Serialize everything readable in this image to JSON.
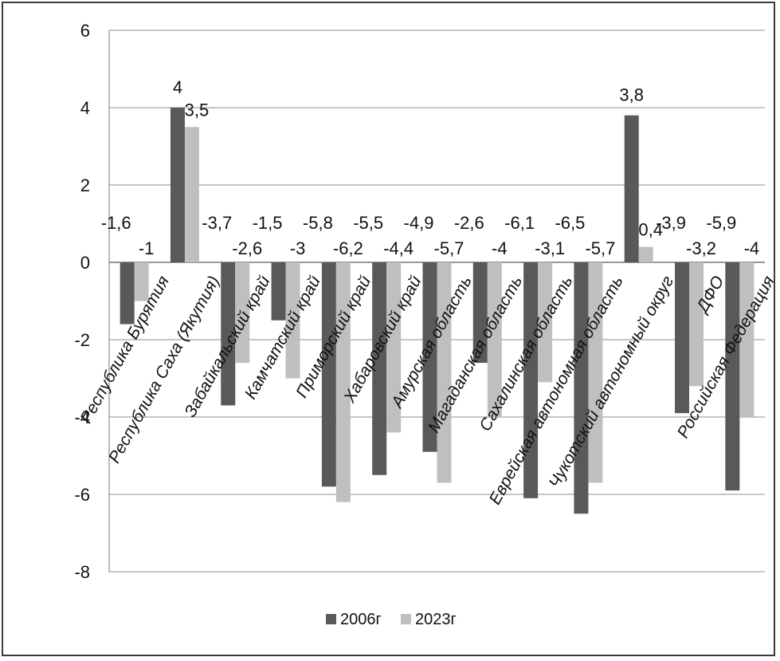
{
  "chart_data": {
    "type": "bar",
    "categories": [
      "Республика Бурятия",
      "Республика Саха (Якутия)",
      "Забайкальский край",
      "Камчатский край",
      "Приморский край",
      "Хабаровский край",
      "Амурская область",
      "Магаданская область",
      "Сахалинская область",
      "Еврейская автономная область",
      "Чукотский автономный округ",
      "ДФО",
      "Российская Федерация"
    ],
    "series": [
      {
        "name": "2006г",
        "color": "#595959",
        "values": [
          -1.6,
          4,
          -3.7,
          -1.5,
          -5.8,
          -5.5,
          -4.9,
          -2.6,
          -6.1,
          -6.5,
          3.8,
          -3.9,
          -5.9
        ],
        "labels": [
          "-1,6",
          "4",
          "-3,7",
          "-1,5",
          "-5,8",
          "-5,5",
          "-4,9",
          "-2,6",
          "-6,1",
          "-6,5",
          "3,8",
          "-3,9",
          "-5,9"
        ]
      },
      {
        "name": "2023г",
        "color": "#bfbfbf",
        "values": [
          -1,
          3.5,
          -2.6,
          -3,
          -6.2,
          -4.4,
          -5.7,
          -4,
          -3.1,
          -5.7,
          0.4,
          -3.2,
          -4
        ],
        "labels": [
          "-1",
          "3,5",
          "-2,6",
          "-3",
          "-6,2",
          "-4,4",
          "-5,7",
          "-4",
          "-3,1",
          "-5,7",
          "0,4",
          "-3,2",
          "-4"
        ]
      }
    ],
    "ylim": [
      -8,
      6
    ],
    "yticks": [
      6,
      4,
      2,
      0,
      -2,
      -4,
      -6,
      -8
    ],
    "grid": "horizontal",
    "legend": "bottom"
  }
}
